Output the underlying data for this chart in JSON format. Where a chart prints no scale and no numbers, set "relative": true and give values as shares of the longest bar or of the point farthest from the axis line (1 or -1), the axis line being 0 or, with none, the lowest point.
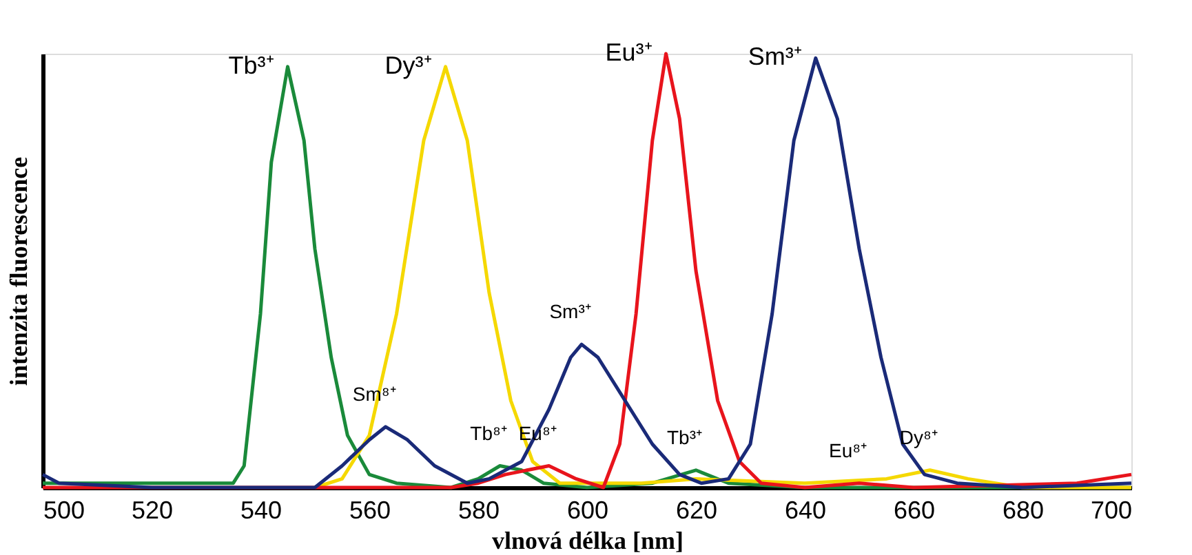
{
  "chart_data": {
    "type": "line",
    "relative": true,
    "xlabel": "vlnová délka [nm]",
    "ylabel": "intenzita fluorescence",
    "xlim": [
      500,
      700
    ],
    "xticks": [
      500,
      520,
      540,
      560,
      580,
      600,
      620,
      640,
      660,
      680,
      700
    ],
    "grid": false,
    "marker": "none",
    "line_style": "solid",
    "series": [
      {
        "color": "#1a8a3a",
        "x": [
          500,
          510,
          520,
          530,
          535,
          537,
          540,
          542,
          545,
          548,
          550,
          553,
          556,
          560,
          565,
          575,
          580,
          584,
          588,
          592,
          600,
          612,
          620,
          626,
          640,
          660,
          700
        ],
        "values": [
          0.01,
          0.01,
          0.01,
          0.01,
          0.01,
          0.05,
          0.4,
          0.75,
          0.97,
          0.8,
          0.55,
          0.3,
          0.12,
          0.03,
          0.01,
          0.0,
          0.02,
          0.05,
          0.04,
          0.01,
          0.0,
          0.01,
          0.04,
          0.01,
          0.0,
          0.0,
          0.0
        ]
      },
      {
        "color": "#f5d800",
        "x": [
          550,
          555,
          560,
          565,
          570,
          574,
          578,
          582,
          586,
          590,
          595,
          610,
          620,
          640,
          655,
          663,
          670,
          680,
          700
        ],
        "values": [
          0.0,
          0.02,
          0.12,
          0.4,
          0.8,
          0.97,
          0.8,
          0.45,
          0.2,
          0.06,
          0.01,
          0.01,
          0.02,
          0.01,
          0.02,
          0.04,
          0.02,
          0.0,
          0.0
        ]
      },
      {
        "color": "#e8141c",
        "x": [
          500,
          540,
          575,
          580,
          585,
          593,
          598,
          603,
          606,
          609,
          612,
          614.5,
          617,
          620,
          624,
          628,
          632,
          640,
          650,
          660,
          690,
          700
        ],
        "values": [
          0.0,
          0.0,
          0.0,
          0.01,
          0.03,
          0.05,
          0.02,
          0.0,
          0.1,
          0.4,
          0.8,
          1.0,
          0.85,
          0.5,
          0.2,
          0.06,
          0.01,
          0.0,
          0.01,
          0.0,
          0.01,
          0.03
        ]
      },
      {
        "color": "#1a2a78",
        "x": [
          500,
          503,
          520,
          550,
          555,
          560,
          563,
          567,
          572,
          578,
          582,
          588,
          593,
          597,
          599,
          602,
          607,
          612,
          617,
          621,
          626,
          630,
          634,
          638,
          642,
          646,
          650,
          654,
          658,
          662,
          668,
          680,
          700
        ],
        "values": [
          0.03,
          0.01,
          0.0,
          0.0,
          0.05,
          0.11,
          0.14,
          0.11,
          0.05,
          0.01,
          0.02,
          0.06,
          0.18,
          0.3,
          0.33,
          0.3,
          0.2,
          0.1,
          0.03,
          0.01,
          0.02,
          0.1,
          0.4,
          0.8,
          0.99,
          0.85,
          0.55,
          0.3,
          0.1,
          0.03,
          0.01,
          0.0,
          0.01
        ]
      }
    ],
    "annotations": [
      {
        "text": "Tb³⁺",
        "x": 545,
        "y": 0.97
      },
      {
        "text": "Dy³⁺",
        "x": 574,
        "y": 0.97
      },
      {
        "text": "Eu³⁺",
        "x": 614.5,
        "y": 1.0
      },
      {
        "text": "Sm³⁺",
        "x": 642,
        "y": 0.99
      },
      {
        "text": "Sm⁸⁺",
        "x": 563,
        "y": 0.14
      },
      {
        "text": "Sm³⁺",
        "x": 599,
        "y": 0.33
      },
      {
        "text": "Tb⁸⁺",
        "x": 584,
        "y": 0.05
      },
      {
        "text": "Eu⁸⁺",
        "x": 593,
        "y": 0.05
      },
      {
        "text": "Tb³⁺",
        "x": 620,
        "y": 0.04
      },
      {
        "text": "Eu⁸⁺",
        "x": 650,
        "y": 0.01
      },
      {
        "text": "Dy⁸⁺",
        "x": 663,
        "y": 0.04
      }
    ]
  }
}
